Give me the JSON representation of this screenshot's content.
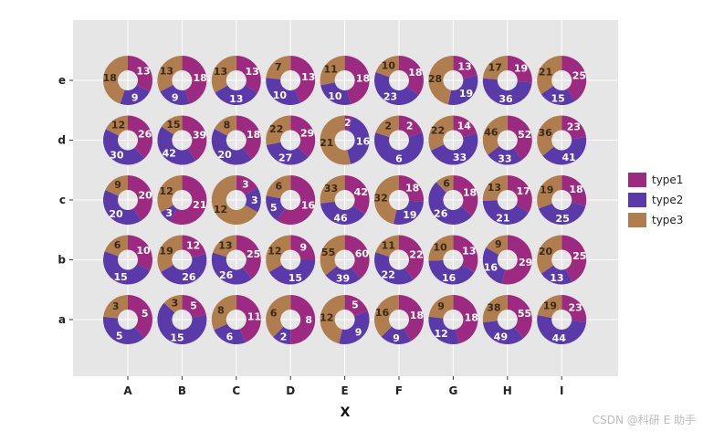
{
  "chart_data": {
    "type": "donut-grid",
    "xlabel": "X",
    "x_categories": [
      "A",
      "B",
      "C",
      "D",
      "E",
      "F",
      "G",
      "H",
      "I"
    ],
    "y_categories": [
      "a",
      "b",
      "c",
      "d",
      "e"
    ],
    "legend": [
      {
        "name": "type1",
        "color": "#9b2a80"
      },
      {
        "name": "type2",
        "color": "#5a3aa8"
      },
      {
        "name": "type3",
        "color": "#b07d4e"
      }
    ],
    "cells": {
      "e": [
        [
          13,
          9,
          18
        ],
        [
          18,
          9,
          13
        ],
        [
          13,
          13,
          13
        ],
        [
          13,
          10,
          7
        ],
        [
          18,
          10,
          11
        ],
        [
          18,
          23,
          10
        ],
        [
          13,
          19,
          28
        ],
        [
          19,
          36,
          17
        ],
        [
          25,
          15,
          21
        ]
      ],
      "d": [
        [
          26,
          30,
          12
        ],
        [
          39,
          42,
          15
        ],
        [
          18,
          20,
          8
        ],
        [
          29,
          27,
          22
        ],
        [
          2,
          16,
          21
        ],
        [
          2,
          6,
          2
        ],
        [
          14,
          33,
          22
        ],
        [
          52,
          33,
          46
        ],
        [
          23,
          41,
          36
        ]
      ],
      "c": [
        [
          20,
          20,
          9
        ],
        [
          21,
          3,
          12
        ],
        [
          3,
          3,
          12
        ],
        [
          16,
          5,
          6
        ],
        [
          42,
          46,
          33
        ],
        [
          18,
          19,
          32
        ],
        [
          18,
          26,
          6
        ],
        [
          17,
          21,
          13
        ],
        [
          18,
          25,
          19
        ]
      ],
      "b": [
        [
          10,
          15,
          6
        ],
        [
          12,
          26,
          19
        ],
        [
          25,
          26,
          13
        ],
        [
          9,
          15,
          12
        ],
        [
          60,
          39,
          55
        ],
        [
          22,
          22,
          11
        ],
        [
          13,
          16,
          10
        ],
        [
          29,
          16,
          9
        ],
        [
          25,
          13,
          20
        ]
      ],
      "a": [
        [
          5,
          5,
          3
        ],
        [
          5,
          15,
          3
        ],
        [
          11,
          6,
          8
        ],
        [
          8,
          2,
          6
        ],
        [
          5,
          9,
          12
        ],
        [
          18,
          9,
          16
        ],
        [
          18,
          12,
          9
        ],
        [
          55,
          49,
          38
        ],
        [
          23,
          44,
          19
        ]
      ]
    }
  },
  "watermark": "CSDN @科研 E 助手"
}
